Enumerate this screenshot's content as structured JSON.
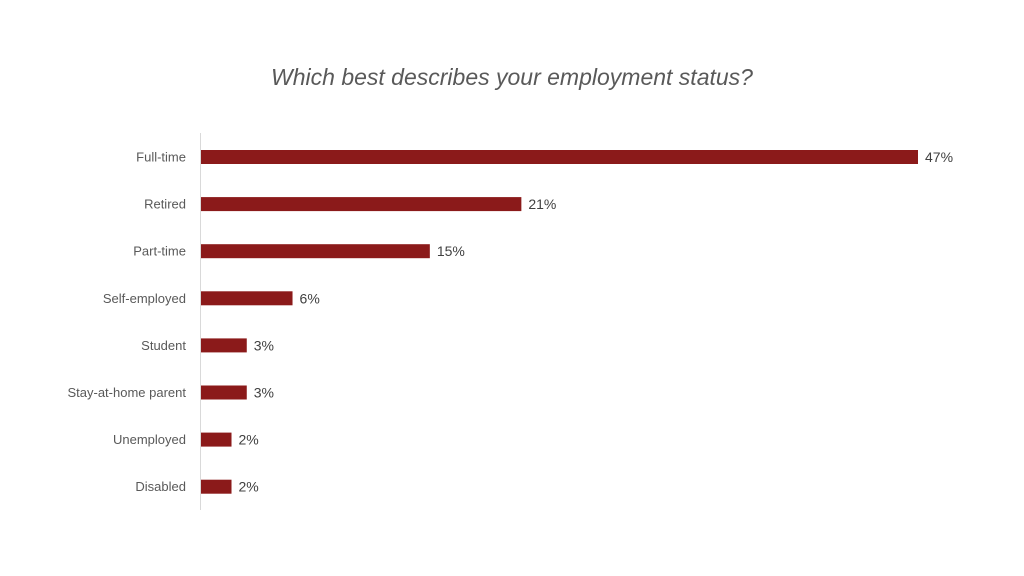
{
  "chart_data": {
    "type": "bar",
    "orientation": "horizontal",
    "title": "Which best describes your employment status?",
    "categories": [
      "Full-time",
      "Retired",
      "Part-time",
      "Self-employed",
      "Student",
      "Stay-at-home parent",
      "Unemployed",
      "Disabled"
    ],
    "values": [
      47,
      21,
      15,
      6,
      3,
      3,
      2,
      2
    ],
    "value_suffix": "%",
    "data_labels": [
      "47%",
      "21%",
      "15%",
      "6%",
      "3%",
      "3%",
      "2%",
      "2%"
    ],
    "xlabel": "",
    "ylabel": "",
    "xlim": [
      0,
      47
    ],
    "grid": false,
    "legend": "none",
    "bar_color": "#8B1A1A",
    "axis_color": "#D9D9D9"
  }
}
